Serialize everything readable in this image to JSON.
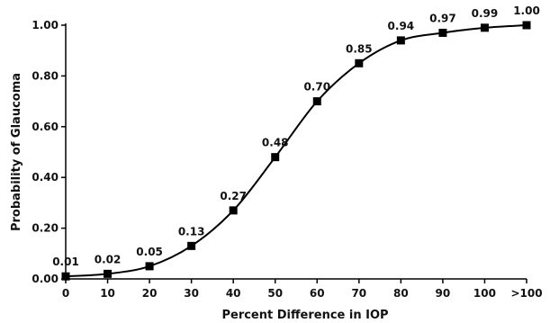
{
  "chart_data": {
    "type": "line",
    "title": "",
    "xlabel": "Percent Difference in IOP",
    "ylabel": "Probability  of Glaucoma",
    "categories": [
      "0",
      "10",
      "20",
      "30",
      "40",
      "50",
      "60",
      "70",
      "80",
      "90",
      "100",
      ">100"
    ],
    "series": [
      {
        "values": [
          0.01,
          0.02,
          0.05,
          0.13,
          0.27,
          0.48,
          0.7,
          0.85,
          0.94,
          0.97,
          0.99,
          1.0
        ],
        "labels": [
          "0.01",
          "0.02",
          "0.05",
          "0.13",
          "0.27",
          "0.48",
          "0.70",
          "0.85",
          "0.94",
          "0.97",
          "0.99",
          "1.00"
        ],
        "color": "#000000",
        "marker": "square"
      }
    ],
    "ylim": [
      0,
      1
    ],
    "yticks": [
      "0.00",
      "0.20",
      "0.40",
      "0.60",
      "0.80",
      "1.00"
    ],
    "ytick_values": [
      0,
      0.2,
      0.4,
      0.6,
      0.8,
      1.0
    ],
    "grid": false,
    "legend": "none"
  }
}
